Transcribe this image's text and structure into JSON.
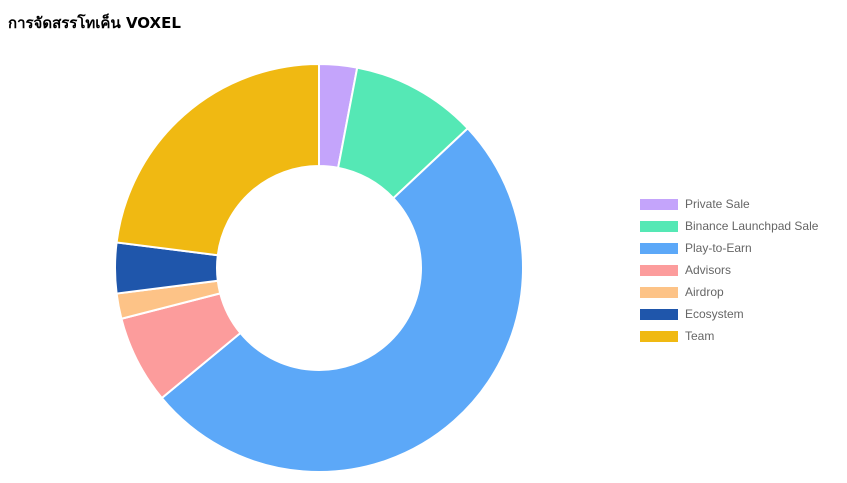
{
  "chart_title": "การจัดสรรโทเค็น VOXEL",
  "chart_data": {
    "type": "pie",
    "title": "การจัดสรรโทเค็น VOXEL",
    "categories": [
      "Private Sale",
      "Binance Launchpad Sale",
      "Play-to-Earn",
      "Advisors",
      "Airdrop",
      "Ecosystem",
      "Team"
    ],
    "values": [
      3,
      10,
      51,
      7,
      2,
      4,
      23
    ],
    "colors": [
      "#c4a4fb",
      "#55e8b5",
      "#5ca8f8",
      "#fc9c9c",
      "#fdc387",
      "#1f56ab",
      "#f0b912"
    ],
    "legend_position": "right",
    "donut": true
  }
}
